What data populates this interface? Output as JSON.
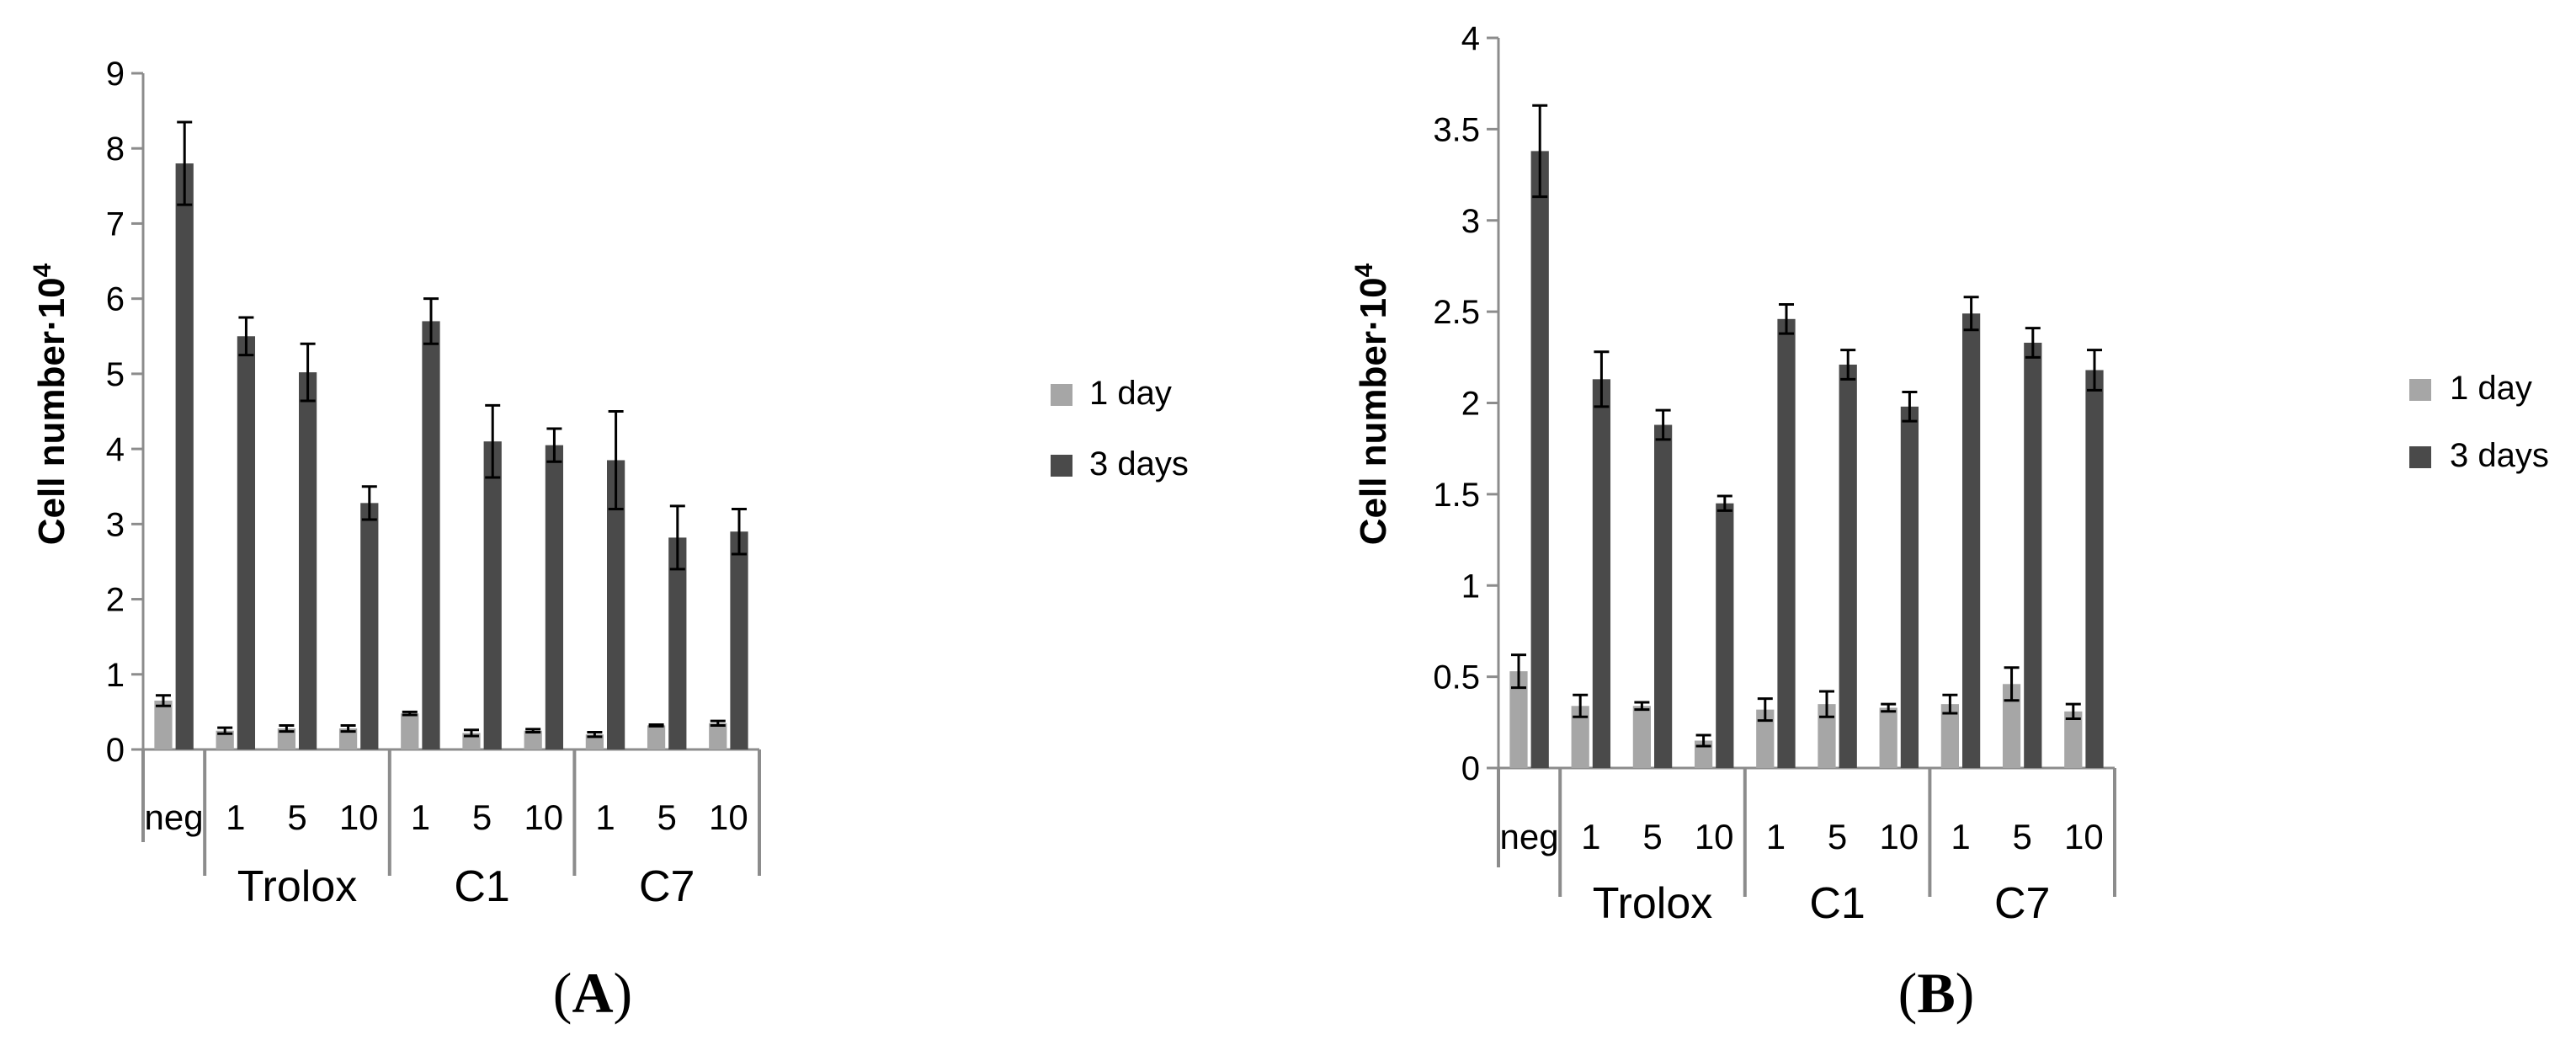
{
  "colors": {
    "one_day": "#a6a6a6",
    "three_days": "#4a4a4a",
    "axis": "#8c8c8c",
    "error_bar": "#000000"
  },
  "chart_data": [
    {
      "type": "bar",
      "panel": "A",
      "panel_label": "A",
      "ylabel_base": "Cell number·10",
      "ylabel_exp": "4",
      "ylim": [
        0,
        9
      ],
      "yticks": [
        "0",
        "1",
        "2",
        "3",
        "4",
        "5",
        "6",
        "7",
        "8",
        "9"
      ],
      "categories": [
        "neg",
        "1",
        "5",
        "10",
        "1",
        "5",
        "10",
        "1",
        "5",
        "10"
      ],
      "groups": [
        {
          "label": "Trolox",
          "start": 1,
          "end": 3
        },
        {
          "label": "C1",
          "start": 4,
          "end": 6
        },
        {
          "label": "C7",
          "start": 7,
          "end": 9
        }
      ],
      "legend_position": "right",
      "series": [
        {
          "name": "1 day",
          "values": [
            0.65,
            0.25,
            0.28,
            0.28,
            0.48,
            0.22,
            0.25,
            0.2,
            0.32,
            0.35
          ],
          "errors": [
            0.07,
            0.04,
            0.04,
            0.04,
            0.02,
            0.04,
            0.02,
            0.03,
            0.01,
            0.03
          ]
        },
        {
          "name": "3 days",
          "values": [
            7.8,
            5.5,
            5.02,
            3.28,
            5.7,
            4.1,
            4.05,
            3.85,
            2.82,
            2.9
          ],
          "errors": [
            0.55,
            0.25,
            0.38,
            0.22,
            0.3,
            0.48,
            0.22,
            0.65,
            0.42,
            0.3
          ]
        }
      ]
    },
    {
      "type": "bar",
      "panel": "B",
      "panel_label": "B",
      "ylabel_base": "Cell number·10",
      "ylabel_exp": "4",
      "ylim": [
        0,
        4
      ],
      "yticks": [
        "0",
        "0.5",
        "1",
        "1.5",
        "2",
        "2.5",
        "3",
        "3.5",
        "4"
      ],
      "categories": [
        "neg",
        "1",
        "5",
        "10",
        "1",
        "5",
        "10",
        "1",
        "5",
        "10"
      ],
      "groups": [
        {
          "label": "Trolox",
          "start": 1,
          "end": 3
        },
        {
          "label": "C1",
          "start": 4,
          "end": 6
        },
        {
          "label": "C7",
          "start": 7,
          "end": 9
        }
      ],
      "legend_position": "right",
      "series": [
        {
          "name": "1 day",
          "values": [
            0.53,
            0.34,
            0.34,
            0.15,
            0.32,
            0.35,
            0.33,
            0.35,
            0.46,
            0.31
          ],
          "errors": [
            0.09,
            0.06,
            0.02,
            0.03,
            0.06,
            0.07,
            0.02,
            0.05,
            0.09,
            0.04
          ]
        },
        {
          "name": "3 days",
          "values": [
            3.38,
            2.13,
            1.88,
            1.45,
            2.46,
            2.21,
            1.98,
            2.49,
            2.33,
            2.18
          ],
          "errors": [
            0.25,
            0.15,
            0.08,
            0.04,
            0.08,
            0.08,
            0.08,
            0.09,
            0.08,
            0.11
          ]
        }
      ]
    }
  ]
}
